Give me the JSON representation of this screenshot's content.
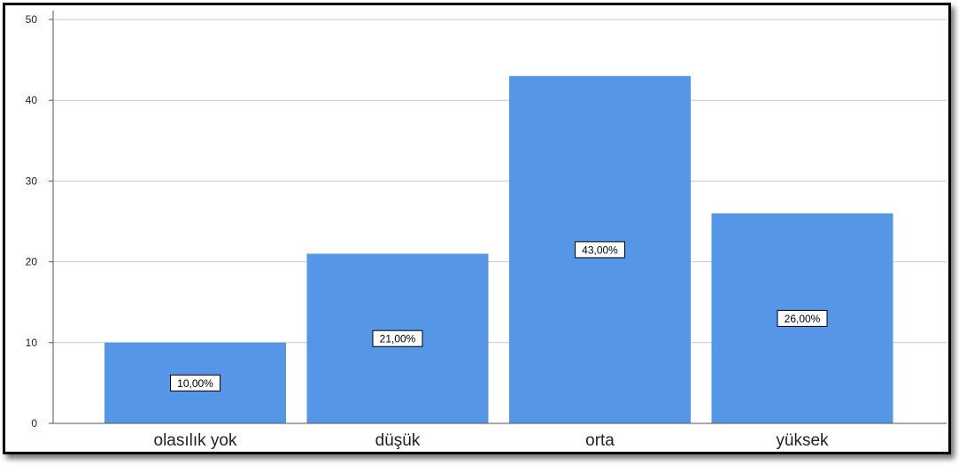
{
  "chart_data": {
    "type": "bar",
    "categories": [
      "olasılık yok",
      "düşük",
      "orta",
      "yüksek"
    ],
    "values": [
      10,
      21,
      43,
      26
    ],
    "data_labels": [
      "10,00%",
      "21,00%",
      "43,00%",
      "26,00%"
    ],
    "ylim": [
      0,
      50
    ],
    "yticks": [
      "0",
      "10",
      "20",
      "30",
      "40",
      "50"
    ],
    "title": "",
    "xlabel": "",
    "ylabel": "",
    "grid": true,
    "bar_color": "#5596e6"
  }
}
